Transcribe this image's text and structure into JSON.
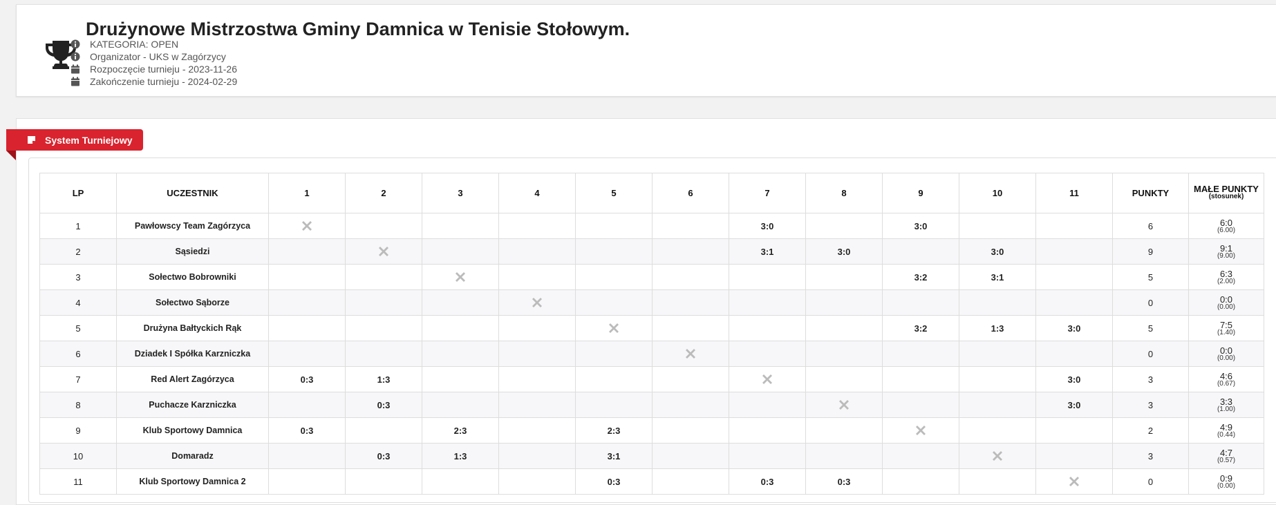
{
  "header": {
    "title": "Drużynowe Mistrzostwa Gminy Damnica w Tenisie Stołowym.",
    "icon": "trophy-icon",
    "info": [
      {
        "icon": "info-icon",
        "text": "KATEGORIA: OPEN"
      },
      {
        "icon": "info-icon",
        "text": "Organizator - UKS w Zagórzycy"
      },
      {
        "icon": "calendar-icon",
        "text": "Rozpoczęcie turnieju - 2023-11-26"
      },
      {
        "icon": "calendar-icon",
        "text": "Zakończenie turnieju - 2024-02-29"
      }
    ]
  },
  "section": {
    "label": "System Turniejowy",
    "icon": "note-icon",
    "accent": "#d9232e"
  },
  "colors": {
    "win": "#1e9a32",
    "loss": "#d12a2a",
    "self": "#bbbbbb"
  },
  "table": {
    "headers": {
      "lp": "LP",
      "name": "UCZESTNIK",
      "cols": [
        "1",
        "2",
        "3",
        "4",
        "5",
        "6",
        "7",
        "8",
        "9",
        "10",
        "11"
      ],
      "points": "PUNKTY",
      "small_points_l1": "MAŁE PUNKTY",
      "small_points_l2": "(stosunek)"
    },
    "rows": [
      {
        "lp": "1",
        "name": "Pawłowscy Team Zagórzyca",
        "cells": [
          "X",
          "",
          "",
          "",
          "",
          "",
          "3:0",
          "",
          "3:0",
          "",
          ""
        ],
        "points": "6",
        "small": "6:0",
        "ratio": "(6.00)"
      },
      {
        "lp": "2",
        "name": "Sąsiedzi",
        "cells": [
          "",
          "X",
          "",
          "",
          "",
          "",
          "3:1",
          "3:0",
          "",
          "3:0",
          ""
        ],
        "points": "9",
        "small": "9:1",
        "ratio": "(9.00)"
      },
      {
        "lp": "3",
        "name": "Sołectwo Bobrowniki",
        "cells": [
          "",
          "",
          "X",
          "",
          "",
          "",
          "",
          "",
          "3:2",
          "3:1",
          ""
        ],
        "points": "5",
        "small": "6:3",
        "ratio": "(2.00)"
      },
      {
        "lp": "4",
        "name": "Sołectwo Sąborze",
        "cells": [
          "",
          "",
          "",
          "X",
          "",
          "",
          "",
          "",
          "",
          "",
          ""
        ],
        "points": "0",
        "small": "0:0",
        "ratio": "(0.00)"
      },
      {
        "lp": "5",
        "name": "Drużyna Bałtyckich Rąk",
        "cells": [
          "",
          "",
          "",
          "",
          "X",
          "",
          "",
          "",
          "3:2",
          "1:3",
          "3:0"
        ],
        "points": "5",
        "small": "7:5",
        "ratio": "(1.40)"
      },
      {
        "lp": "6",
        "name": "Dziadek I Spółka Karzniczka",
        "cells": [
          "",
          "",
          "",
          "",
          "",
          "X",
          "",
          "",
          "",
          "",
          ""
        ],
        "points": "0",
        "small": "0:0",
        "ratio": "(0.00)"
      },
      {
        "lp": "7",
        "name": "Red Alert Zagórzyca",
        "cells": [
          "0:3",
          "1:3",
          "",
          "",
          "",
          "",
          "X",
          "",
          "",
          "",
          "3:0"
        ],
        "points": "3",
        "small": "4:6",
        "ratio": "(0.67)"
      },
      {
        "lp": "8",
        "name": "Puchacze Karzniczka",
        "cells": [
          "",
          "0:3",
          "",
          "",
          "",
          "",
          "",
          "X",
          "",
          "",
          "3:0"
        ],
        "points": "3",
        "small": "3:3",
        "ratio": "(1.00)"
      },
      {
        "lp": "9",
        "name": "Klub Sportowy Damnica",
        "cells": [
          "0:3",
          "",
          "2:3",
          "",
          "2:3",
          "",
          "",
          "",
          "X",
          "",
          ""
        ],
        "points": "2",
        "small": "4:9",
        "ratio": "(0.44)"
      },
      {
        "lp": "10",
        "name": "Domaradz",
        "cells": [
          "",
          "0:3",
          "1:3",
          "",
          "3:1",
          "",
          "",
          "",
          "",
          "X",
          ""
        ],
        "points": "3",
        "small": "4:7",
        "ratio": "(0.57)"
      },
      {
        "lp": "11",
        "name": "Klub Sportowy Damnica 2",
        "cells": [
          "",
          "",
          "",
          "",
          "0:3",
          "",
          "0:3",
          "0:3",
          "",
          "",
          "X"
        ],
        "points": "0",
        "small": "0:9",
        "ratio": "(0.00)"
      }
    ]
  }
}
